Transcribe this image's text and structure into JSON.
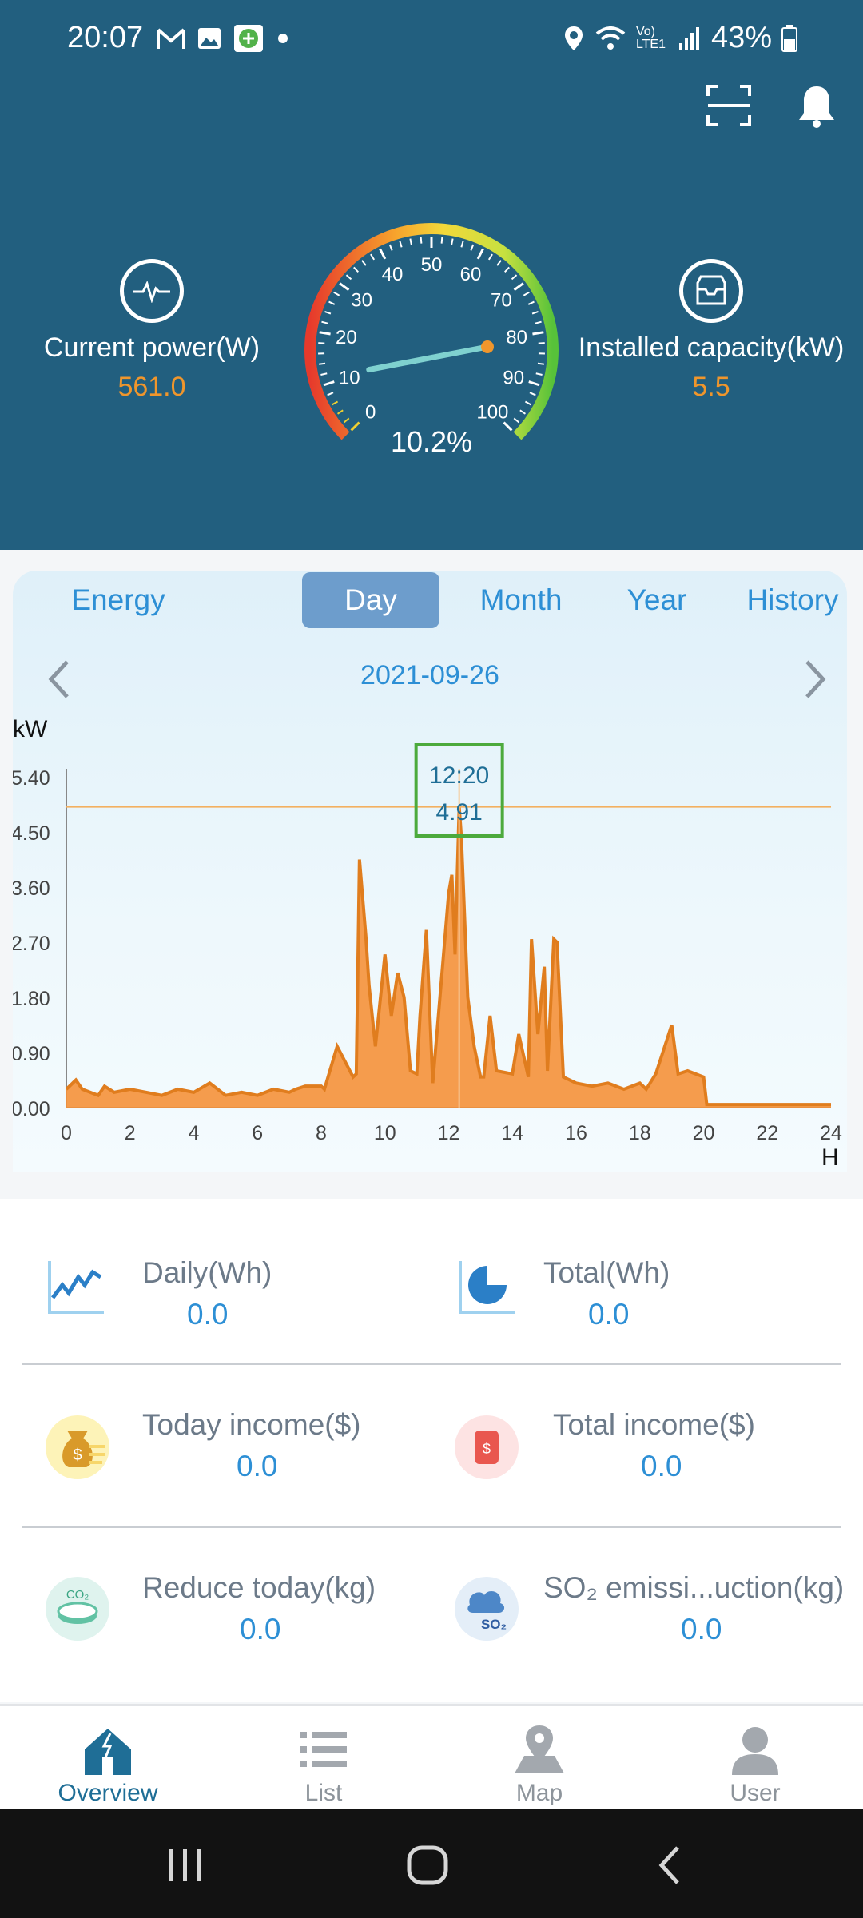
{
  "status_bar": {
    "time": "20:07",
    "battery": "43%",
    "network_label": "Vo) LTE1"
  },
  "header": {
    "current_power_label": "Current power(W)",
    "current_power_value": "561.0",
    "installed_capacity_label": "Installed capacity(kW)",
    "installed_capacity_value": "5.5",
    "gauge_percent_text": "10.2%",
    "gauge_percent": 10.2,
    "gauge_ticks": [
      "0",
      "10",
      "20",
      "30",
      "40",
      "50",
      "60",
      "70",
      "80",
      "90",
      "100"
    ]
  },
  "tabs": [
    {
      "label": "Energy",
      "active": false
    },
    {
      "label": "Day",
      "active": true
    },
    {
      "label": "Month",
      "active": false
    },
    {
      "label": "Year",
      "active": false
    },
    {
      "label": "History",
      "active": false
    }
  ],
  "date": "2021-09-26",
  "chart_data": {
    "type": "area",
    "ylabel": "kW",
    "xlabel": "H",
    "ylim": [
      0,
      5.4
    ],
    "xlim": [
      0,
      24
    ],
    "y_ticks": [
      "0.00",
      "0.90",
      "1.80",
      "2.70",
      "3.60",
      "4.50",
      "5.40"
    ],
    "x_ticks": [
      "0",
      "2",
      "4",
      "6",
      "8",
      "10",
      "12",
      "14",
      "16",
      "18",
      "20",
      "22",
      "24"
    ],
    "tooltip": {
      "time": "12:20",
      "value": "4.91",
      "x": 12.33,
      "y": 4.91
    },
    "x": [
      0,
      0.3,
      0.5,
      1,
      1.2,
      1.5,
      2,
      2.5,
      3,
      3.5,
      4,
      4.5,
      5,
      5.5,
      6,
      6.5,
      7,
      7.2,
      7.5,
      8,
      8.1,
      8.5,
      9,
      9.1,
      9.2,
      9.4,
      9.5,
      9.7,
      10,
      10.2,
      10.4,
      10.6,
      10.8,
      11,
      11.1,
      11.3,
      11.5,
      12,
      12.1,
      12.2,
      12.33,
      12.4,
      12.6,
      12.8,
      13,
      13.1,
      13.3,
      13.5,
      14,
      14.2,
      14.5,
      14.6,
      14.8,
      15,
      15.1,
      15.3,
      15.4,
      15.6,
      16,
      16.5,
      17,
      17.5,
      18,
      18.2,
      18.5,
      19,
      19.2,
      19.5,
      20,
      20.1,
      21,
      22,
      23,
      24
    ],
    "values": [
      0.3,
      0.45,
      0.3,
      0.2,
      0.35,
      0.25,
      0.3,
      0.25,
      0.2,
      0.3,
      0.25,
      0.4,
      0.2,
      0.25,
      0.2,
      0.3,
      0.25,
      0.3,
      0.35,
      0.35,
      0.3,
      1.0,
      0.5,
      0.55,
      4.05,
      2.8,
      2.0,
      1.0,
      2.5,
      1.5,
      2.2,
      1.8,
      0.6,
      0.55,
      1.5,
      2.9,
      0.4,
      3.5,
      3.8,
      2.5,
      4.91,
      4.4,
      1.8,
      1.0,
      0.5,
      0.5,
      1.5,
      0.6,
      0.55,
      1.2,
      0.5,
      2.75,
      1.2,
      2.3,
      0.6,
      2.75,
      2.7,
      0.5,
      0.4,
      0.35,
      0.4,
      0.3,
      0.4,
      0.3,
      0.55,
      1.35,
      0.55,
      0.6,
      0.5,
      0.05,
      0.05,
      0.05,
      0.05,
      0.05
    ]
  },
  "stats": {
    "daily_label": "Daily(Wh)",
    "daily_value": "0.0",
    "total_label": "Total(Wh)",
    "total_value": "0.0",
    "today_income_label": "Today income($)",
    "today_income_value": "0.0",
    "total_income_label": "Total income($)",
    "total_income_value": "0.0",
    "reduce_today_label": "Reduce today(kg)",
    "reduce_today_value": "0.0",
    "so2_label": "SO₂ emissi...uction(kg)",
    "so2_value": "0.0"
  },
  "bottom_nav": [
    {
      "label": "Overview",
      "active": true
    },
    {
      "label": "List",
      "active": false
    },
    {
      "label": "Map",
      "active": false
    },
    {
      "label": "User",
      "active": false
    }
  ],
  "colors": {
    "header_bg": "#225f7f",
    "accent_orange": "#f0962c",
    "accent_blue": "#2d8fd5",
    "area_fill": "#f5913a",
    "tooltip_border": "#4caa3c"
  }
}
